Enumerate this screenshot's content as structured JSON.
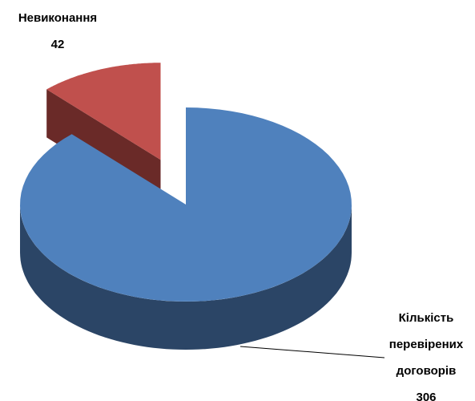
{
  "chart_data": {
    "type": "pie3d",
    "categories": [
      "Кількість перевірених договорів",
      "Невиконання"
    ],
    "values": [
      306,
      42
    ],
    "colors": [
      "#4f81bd",
      "#c0504d"
    ],
    "side_colors": [
      "#2b4566",
      "#6a2a28"
    ]
  }
}
